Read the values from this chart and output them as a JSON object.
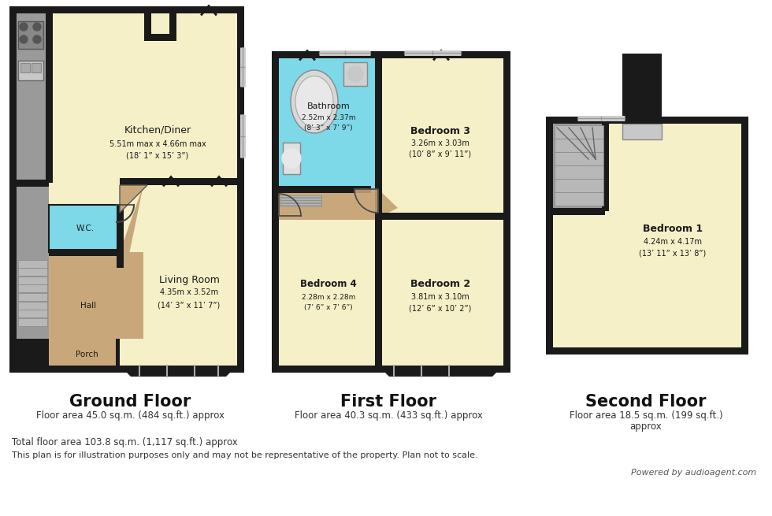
{
  "bg_color": "#ffffff",
  "wall_color": "#1a1a1a",
  "room_fill": "#f5f0c8",
  "hall_fill": "#c8a87a",
  "wc_fill": "#7dd8e8",
  "bathroom_fill": "#7dd8e8",
  "gray_fill": "#9a9a9a",
  "light_gray": "#c8c8c8",
  "dark_gray": "#666666",
  "stair_fill": "#b8b8b8",
  "ground_floor_title": "Ground Floor",
  "ground_floor_area": "Floor area 45.0 sq.m. (484 sq.ft.) approx",
  "first_floor_title": "First Floor",
  "first_floor_area": "Floor area 40.3 sq.m. (433 sq.ft.) approx",
  "second_floor_title": "Second Floor",
  "second_floor_area_line1": "Floor area 18.5 sq.m. (199 sq.ft.)",
  "second_floor_area_line2": "approx",
  "total_area": "Total floor area 103.8 sq.m. (1,117 sq.ft.) approx",
  "disclaimer": "This plan is for illustration purposes only and may not be representative of the property. Plan not to scale.",
  "powered_by": "Powered by audioagent.com",
  "kitchen_name": "Kitchen/Diner",
  "kitchen_dim1": "5.51m max x 4.66m max",
  "kitchen_dim2": "(18’ 1” x 15’ 3”)",
  "living_name": "Living Room",
  "living_dim1": "4.35m x 3.52m",
  "living_dim2": "(14’ 3” x 11’ 7”)",
  "bathroom_name": "Bathroom",
  "bathroom_dim1": "2.52m x 2.37m",
  "bathroom_dim2": "(8’ 3” x 7’ 9”)",
  "bed3_name": "Bedroom 3",
  "bed3_dim1": "3.26m x 3.03m",
  "bed3_dim2": "(10’ 8” x 9’ 11”)",
  "bed2_name": "Bedroom 2",
  "bed2_dim1": "3.81m x 3.10m",
  "bed2_dim2": "(12’ 6” x 10’ 2”)",
  "bed4_name": "Bedroom 4",
  "bed4_dim1": "2.28m x 2.28m",
  "bed4_dim2": "(7’ 6” x 7’ 6”)",
  "bed1_name": "Bedroom 1",
  "bed1_dim1": "4.24m x 4.17m",
  "bed1_dim2": "(13’ 11” x 13’ 8”)"
}
